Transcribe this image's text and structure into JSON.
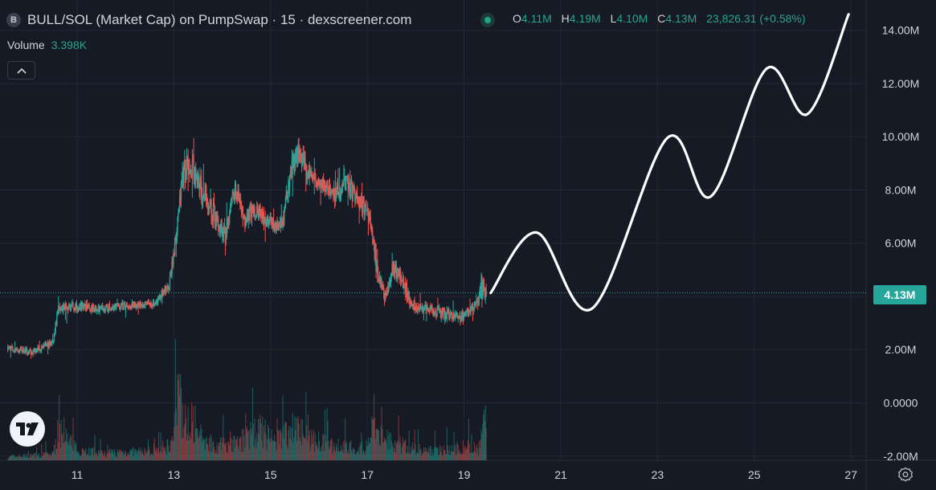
{
  "header": {
    "symbol_badge": "B",
    "title": "BULL/SOL (Market Cap) on PumpSwap · 15 · dexscreener.com",
    "ohlc": {
      "o_label": "O",
      "o_value": "4.11M",
      "h_label": "H",
      "h_value": "4.19M",
      "l_label": "L",
      "l_value": "4.10M",
      "c_label": "C",
      "c_value": "4.13M",
      "change": "23,826.31 (+0.58%)"
    }
  },
  "volume": {
    "label": "Volume",
    "value": "3.398K"
  },
  "icons": {
    "symbol": "token-logo-icon",
    "status": "market-status-icon",
    "collapse": "chevron-up-icon",
    "logo": "tradingview-logo-icon",
    "settings": "gear-icon"
  },
  "colors": {
    "background": "#161a25",
    "up": "#26a69a",
    "down": "#ef5350",
    "price_line": "#26a69a",
    "drawing": "#ffffff",
    "grid": "#232733"
  },
  "chart_data": {
    "type": "candlestick",
    "price_axis": {
      "ticks": [
        -2,
        0,
        2,
        4,
        6,
        8,
        10,
        12,
        14
      ],
      "tick_labels": [
        "-2.00M",
        "0.0000",
        "2.00M",
        "",
        "6.00M",
        "8.00M",
        "10.00M",
        "12.00M",
        "14.00M"
      ],
      "unit": "M",
      "ylim": [
        -2.0,
        14.8
      ]
    },
    "time_axis": {
      "ticks": [
        11,
        13,
        15,
        17,
        19,
        21,
        23,
        25,
        27
      ],
      "xlim": [
        9.55,
        28.0
      ]
    },
    "current_price": {
      "value": 4.13,
      "label": "4.13M"
    },
    "candle_interval": "15",
    "price_series": {
      "x": [
        9.55,
        10.05,
        10.5,
        10.6,
        11.0,
        11.5,
        12.0,
        12.6,
        12.9,
        13.05,
        13.15,
        13.3,
        13.55,
        13.8,
        14.05,
        14.25,
        14.45,
        14.7,
        14.95,
        15.25,
        15.4,
        15.55,
        15.75,
        16.05,
        16.3,
        16.55,
        16.8,
        17.05,
        17.2,
        17.35,
        17.55,
        17.8,
        18.0,
        18.3,
        18.6,
        18.9,
        19.1,
        19.25,
        19.35,
        19.45
      ],
      "y": [
        2.1,
        1.9,
        2.3,
        3.6,
        3.6,
        3.55,
        3.65,
        3.75,
        4.5,
        6.3,
        8.5,
        9.1,
        8.0,
        7.2,
        6.3,
        8.1,
        6.9,
        7.3,
        6.7,
        6.8,
        8.8,
        9.7,
        8.6,
        8.2,
        7.8,
        8.3,
        7.6,
        7.0,
        4.8,
        4.0,
        5.2,
        4.1,
        3.6,
        3.5,
        3.3,
        3.15,
        3.4,
        3.75,
        4.4,
        4.13
      ],
      "high": [
        2.4,
        2.2,
        2.6,
        4.0,
        3.9,
        3.85,
        3.95,
        4.0,
        5.0,
        7.0,
        10.0,
        10.4,
        9.3,
        8.3,
        7.3,
        8.7,
        7.7,
        8.0,
        7.2,
        7.5,
        9.8,
        11.0,
        9.4,
        9.0,
        8.7,
        9.0,
        8.6,
        7.6,
        6.6,
        4.7,
        5.9,
        5.1,
        4.2,
        4.0,
        3.9,
        3.8,
        3.9,
        4.1,
        6.6,
        4.9
      ],
      "low": [
        1.7,
        1.6,
        1.9,
        2.9,
        3.0,
        3.1,
        3.2,
        3.3,
        4.0,
        5.6,
        7.5,
        8.0,
        7.0,
        6.0,
        5.5,
        6.8,
        6.0,
        6.3,
        5.9,
        6.1,
        7.2,
        8.6,
        7.7,
        7.4,
        7.0,
        7.2,
        6.8,
        6.1,
        4.2,
        3.6,
        4.0,
        3.6,
        3.2,
        3.0,
        2.8,
        2.7,
        2.9,
        3.2,
        3.8,
        3.7
      ]
    },
    "volume_series": {
      "x": [
        9.6,
        10.0,
        10.5,
        10.6,
        11.0,
        11.5,
        12.0,
        12.6,
        12.95,
        13.0,
        13.08,
        13.15,
        13.3,
        13.6,
        13.9,
        14.3,
        14.75,
        15.1,
        15.35,
        15.5,
        15.7,
        16.0,
        16.5,
        16.95,
        17.1,
        17.3,
        17.6,
        17.8,
        18.2,
        18.6,
        18.9,
        19.2,
        19.3,
        19.4
      ],
      "value": [
        0.25,
        0.3,
        0.45,
        1.9,
        0.7,
        0.5,
        0.55,
        0.6,
        1.1,
        1.6,
        4.8,
        3.2,
        2.2,
        1.4,
        1.0,
        1.1,
        2.0,
        1.3,
        1.9,
        2.4,
        1.6,
        1.2,
        0.9,
        0.8,
        2.0,
        1.5,
        1.1,
        0.9,
        0.6,
        0.7,
        0.8,
        1.0,
        0.6,
        2.4
      ]
    },
    "drawing": {
      "x": [
        19.55,
        20.5,
        21.65,
        23.2,
        24.1,
        25.25,
        26.1,
        26.95
      ],
      "y": [
        4.13,
        6.4,
        3.55,
        9.95,
        7.75,
        12.55,
        10.85,
        14.6
      ]
    }
  }
}
